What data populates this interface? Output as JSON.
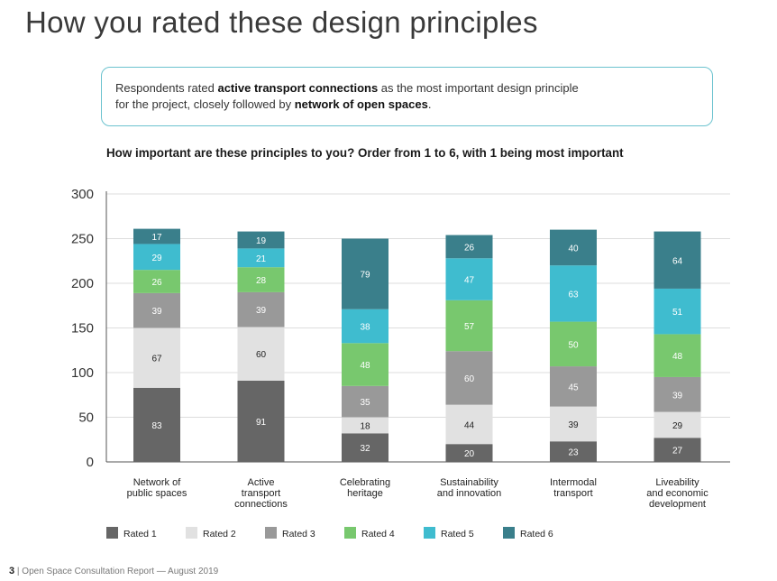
{
  "page": {
    "title": "How you rated these design principles",
    "callout": {
      "t1": "Respondents rated ",
      "b1": "active transport connections",
      "t2": " as the most important design principle",
      "t3": "for the project, closely followed by ",
      "b2": "network of open spaces",
      "t4": "."
    },
    "question": "How important are these principles to you? Order from 1 to 6, with 1 being most important",
    "footer": {
      "page_number": "3",
      "separator": "|",
      "text": "Open Space Consultation Report — August 2019"
    }
  },
  "colors": {
    "rated1": "#666666",
    "rated2": "#e1e1e1",
    "rated3": "#999999",
    "rated4": "#78c86e",
    "rated5": "#3fbccf",
    "rated6": "#3a7f8b",
    "gridline": "#dddddd",
    "axis": "#555555"
  },
  "chart_data": {
    "type": "bar",
    "stacked": true,
    "title": "How important are these principles to you? Order from 1 to 6, with 1 being most important",
    "ylim": [
      0,
      300
    ],
    "yticks": [
      0,
      50,
      100,
      150,
      200,
      250,
      300
    ],
    "categories": [
      [
        "Network of",
        "public spaces"
      ],
      [
        "Active",
        "transport",
        "connections"
      ],
      [
        "Celebrating",
        "heritage"
      ],
      [
        "Sustainability",
        "and innovation"
      ],
      [
        "Intermodal",
        "transport"
      ],
      [
        "Liveability",
        "and economic",
        "development"
      ]
    ],
    "series": [
      {
        "name": "Rated 1",
        "color_key": "rated1",
        "label_color": "#ffffff",
        "values": [
          83,
          91,
          32,
          20,
          23,
          27
        ]
      },
      {
        "name": "Rated 2",
        "color_key": "rated2",
        "label_color": "#222222",
        "values": [
          67,
          60,
          18,
          44,
          39,
          29
        ]
      },
      {
        "name": "Rated 3",
        "color_key": "rated3",
        "label_color": "#ffffff",
        "values": [
          39,
          39,
          35,
          60,
          45,
          39
        ]
      },
      {
        "name": "Rated 4",
        "color_key": "rated4",
        "label_color": "#ffffff",
        "values": [
          26,
          28,
          48,
          57,
          50,
          48
        ]
      },
      {
        "name": "Rated 5",
        "color_key": "rated5",
        "label_color": "#ffffff",
        "values": [
          29,
          21,
          38,
          47,
          63,
          51
        ]
      },
      {
        "name": "Rated 6",
        "color_key": "rated6",
        "label_color": "#ffffff",
        "values": [
          17,
          19,
          79,
          26,
          40,
          64
        ]
      }
    ],
    "legend_position": "bottom"
  }
}
